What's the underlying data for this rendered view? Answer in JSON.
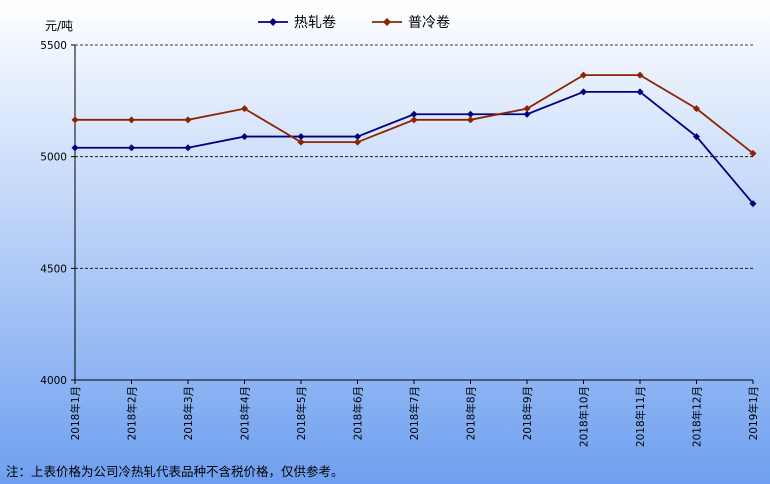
{
  "chart_data": {
    "type": "line",
    "unit_label": "元/吨",
    "categories": [
      "2018年1月",
      "2018年2月",
      "2018年3月",
      "2018年4月",
      "2018年5月",
      "2018年6月",
      "2018年7月",
      "2018年8月",
      "2018年9月",
      "2018年10月",
      "2018年11月",
      "2018年12月",
      "2019年1月"
    ],
    "series": [
      {
        "name": "热轧卷",
        "color": "#000080",
        "values": [
          5040,
          5040,
          5040,
          5090,
          5090,
          5090,
          5190,
          5190,
          5190,
          5290,
          5290,
          5090,
          4790
        ]
      },
      {
        "name": "普冷卷",
        "color": "#8B2500",
        "values": [
          5165,
          5165,
          5165,
          5215,
          5065,
          5065,
          5165,
          5165,
          5215,
          5365,
          5365,
          5215,
          5015
        ]
      }
    ],
    "ylim": [
      4000,
      5500
    ],
    "yticks": [
      4000,
      4500,
      5000,
      5500
    ],
    "grid": true,
    "legend_position": "top-center",
    "background_gradient": [
      "#ffffff",
      "#6e9ff0"
    ]
  },
  "note": "注：上表价格为公司冷热轧代表品种不含税价格，仅供参考。"
}
